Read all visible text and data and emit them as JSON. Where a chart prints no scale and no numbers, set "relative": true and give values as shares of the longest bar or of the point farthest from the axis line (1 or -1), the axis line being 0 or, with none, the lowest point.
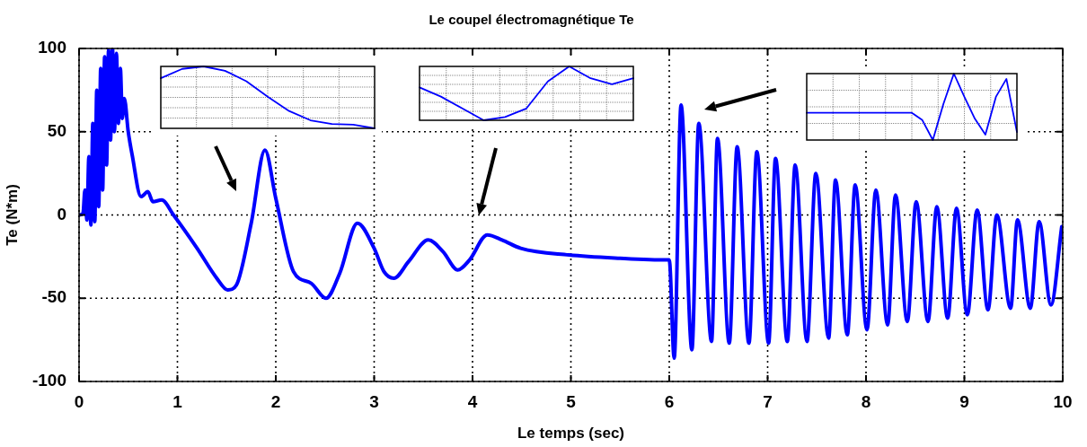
{
  "chart_data": [
    {
      "type": "line",
      "title": "Le coupel électromagnétique Te",
      "xlabel": "Le temps (sec)",
      "ylabel": "Te (N*m)",
      "x": [
        0,
        0.04,
        0.06,
        0.08,
        0.1,
        0.12,
        0.14,
        0.16,
        0.18,
        0.2,
        0.22,
        0.24,
        0.26,
        0.28,
        0.3,
        0.32,
        0.34,
        0.36,
        0.38,
        0.4,
        0.42,
        0.44,
        0.46,
        0.5,
        0.54,
        0.63,
        0.7,
        0.75,
        0.84,
        0.96,
        1.2,
        1.4,
        1.51,
        1.6,
        1.75,
        1.89,
        2.0,
        2.18,
        2.36,
        2.51,
        2.65,
        2.83,
        3.0,
        3.1,
        3.2,
        3.35,
        3.55,
        3.7,
        3.85,
        3.97,
        4.15,
        4.3,
        4.49,
        4.98,
        5.5,
        5.98,
        6.0,
        6.05,
        6.12,
        6.23,
        6.3,
        6.43,
        6.49,
        6.61,
        6.69,
        6.81,
        6.89,
        7.01,
        7.08,
        7.2,
        7.28,
        7.4,
        7.49,
        7.62,
        7.69,
        7.81,
        7.89,
        8.01,
        8.1,
        8.22,
        8.3,
        8.42,
        8.51,
        8.63,
        8.72,
        8.83,
        8.92,
        9.03,
        9.13,
        9.24,
        9.33,
        9.47,
        9.54,
        9.67,
        9.76,
        9.88,
        9.99
      ],
      "series": [
        {
          "color": "#0000ff",
          "values": [
            0,
            1,
            15,
            -3,
            35,
            -6,
            55,
            -4,
            75,
            5,
            88,
            15,
            95,
            30,
            99,
            45,
            100,
            50,
            97,
            55,
            88,
            58,
            70,
            50,
            36,
            11,
            14,
            8,
            9,
            0,
            -20,
            -38,
            -45,
            -42,
            -5,
            39,
            10,
            -34,
            -41,
            -50,
            -35,
            -5,
            -20,
            -34,
            -38,
            -28,
            -15,
            -22,
            -33,
            -27,
            -12,
            -15,
            -20,
            -24,
            -26,
            -27,
            -27,
            -86,
            66,
            -81,
            55,
            -76,
            46,
            -77,
            41,
            -77,
            38,
            -77,
            34,
            -76,
            30,
            -76,
            25,
            -74,
            21,
            -72,
            18,
            -69,
            15,
            -66,
            12,
            -64,
            8,
            -64,
            5,
            -62,
            4,
            -60,
            3,
            -57,
            0,
            -56,
            -3,
            -56,
            -4,
            -54,
            -7
          ]
        }
      ],
      "xlim": [
        0,
        10
      ],
      "xticks": [
        0,
        1,
        2,
        3,
        4,
        5,
        6,
        7,
        8,
        9,
        10
      ],
      "ylim": [
        -100,
        100
      ],
      "yticks": [
        -100,
        -50,
        0,
        50,
        100
      ],
      "grid": true
    },
    {
      "type": "line",
      "relative": true,
      "grid": true,
      "categories": [
        null,
        null,
        null,
        null,
        null,
        null,
        null,
        null,
        null,
        null,
        null
      ],
      "series": [
        {
          "color": "#0000ff",
          "values": [
            0.81,
            0.96,
            1,
            0.93,
            0.76,
            0.51,
            0.28,
            0.13,
            0.07,
            0.06,
            0
          ]
        }
      ]
    },
    {
      "type": "line",
      "relative": true,
      "grid": true,
      "categories": [
        null,
        null,
        null,
        null,
        null,
        null,
        null,
        null,
        null,
        null,
        null
      ],
      "series": [
        {
          "color": "#0000ff",
          "values": [
            0.61,
            0.44,
            0.22,
            0,
            0.06,
            0.22,
            0.72,
            1,
            0.78,
            0.67,
            0.78
          ]
        }
      ]
    },
    {
      "type": "line",
      "relative": true,
      "grid": true,
      "categories": [
        null,
        null,
        null,
        null,
        null,
        null,
        null,
        null,
        null,
        null,
        null,
        null,
        null,
        null,
        null,
        null,
        null,
        null,
        null,
        null,
        null
      ],
      "series": [
        {
          "color": "#0000ff",
          "values": [
            0.41,
            0.41,
            0.41,
            0.41,
            0.41,
            0.41,
            0.41,
            0.41,
            0.41,
            0.41,
            0.41,
            0.3,
            0,
            0.54,
            1,
            0.65,
            0.32,
            0.08,
            0.65,
            0.92,
            0.12
          ]
        }
      ]
    }
  ]
}
